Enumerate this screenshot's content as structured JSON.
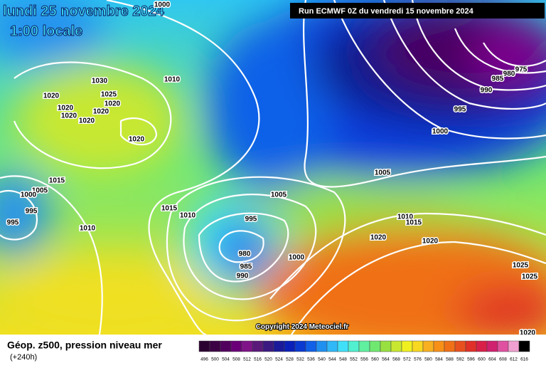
{
  "header": {
    "title": "lundi 25 novembre 2024",
    "time": "1:00 locale",
    "run": "Run ECMWF 0Z du vendredi 15 novembre 2024"
  },
  "isobar_labels": [
    1000,
    1030,
    1020,
    1025,
    1020,
    1020,
    1020,
    1020,
    1020,
    1020,
    1010,
    1015,
    1005,
    1000,
    995,
    995,
    1010,
    1015,
    1010,
    1005,
    995,
    980,
    985,
    990,
    1000,
    975,
    980,
    985,
    990,
    995,
    1000,
    1005,
    1010,
    1015,
    1020,
    1020,
    1025,
    1025,
    1020
  ],
  "copyright": "Copyright 2024 Meteociel.fr",
  "footer": {
    "title": "Géop. z500, pression niveau mer",
    "lead": "(+240h)"
  },
  "legend": {
    "labels": [
      496,
      500,
      504,
      508,
      512,
      516,
      520,
      524,
      528,
      532,
      536,
      540,
      544,
      548,
      552,
      556,
      560,
      564,
      568,
      572,
      576,
      580,
      584,
      588,
      592,
      596,
      600,
      604,
      608,
      612,
      616
    ],
    "colors": [
      "#2a0030",
      "#3c0045",
      "#52005e",
      "#6a0078",
      "#7e1488",
      "#5a1a7a",
      "#3a1a80",
      "#1a1a9a",
      "#0a20b8",
      "#0a3ad0",
      "#1060e8",
      "#2090f0",
      "#30b8f8",
      "#40e0f8",
      "#50f0d0",
      "#60f0a0",
      "#70e870",
      "#98e040",
      "#c8e830",
      "#f0f020",
      "#f8d820",
      "#f8b020",
      "#f89018",
      "#f07018",
      "#e85020",
      "#e03028",
      "#d82048",
      "#d02070",
      "#e050a0",
      "#f0a0d0",
      "#000000"
    ]
  }
}
